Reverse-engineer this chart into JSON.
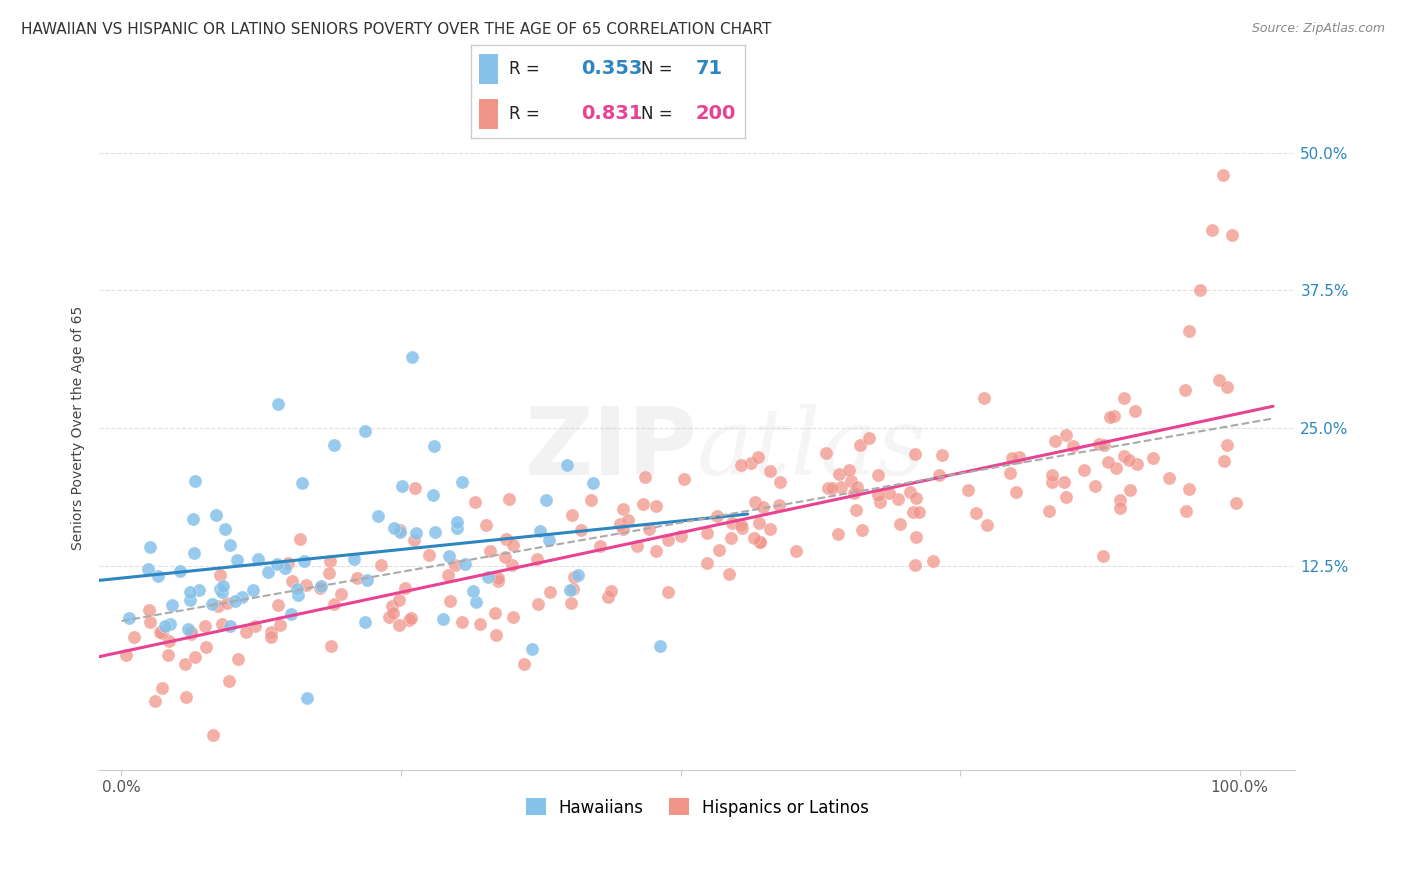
{
  "title": "HAWAIIAN VS HISPANIC OR LATINO SENIORS POVERTY OVER THE AGE OF 65 CORRELATION CHART",
  "source": "Source: ZipAtlas.com",
  "ylabel": "Seniors Poverty Over the Age of 65",
  "xlim": [
    -0.02,
    1.05
  ],
  "ylim": [
    -0.06,
    0.56
  ],
  "xticks": [
    0.0,
    0.25,
    0.5,
    0.75,
    1.0
  ],
  "xtick_labels": [
    "0.0%",
    "",
    "",
    "",
    "100.0%"
  ],
  "yticks": [
    0.125,
    0.25,
    0.375,
    0.5
  ],
  "ytick_labels": [
    "12.5%",
    "25.0%",
    "37.5%",
    "50.0%"
  ],
  "hawaiian_color": "#85C1E9",
  "hispanic_color": "#F1948A",
  "hawaiian_R": 0.353,
  "hawaiian_N": 71,
  "hispanic_R": 0.831,
  "hispanic_N": 200,
  "hawaiian_line_color": "#2E86C1",
  "hispanic_line_color": "#E84393",
  "trend_line_color": "#AAAAAA",
  "background_color": "#FFFFFF",
  "grid_color": "#E0E0E0",
  "watermark_color": "#CCCCCC",
  "legend_labels": [
    "Hawaiians",
    "Hispanics or Latinos"
  ],
  "title_fontsize": 11,
  "label_fontsize": 10,
  "tick_fontsize": 11,
  "legend_fontsize": 12,
  "seed": 12345
}
